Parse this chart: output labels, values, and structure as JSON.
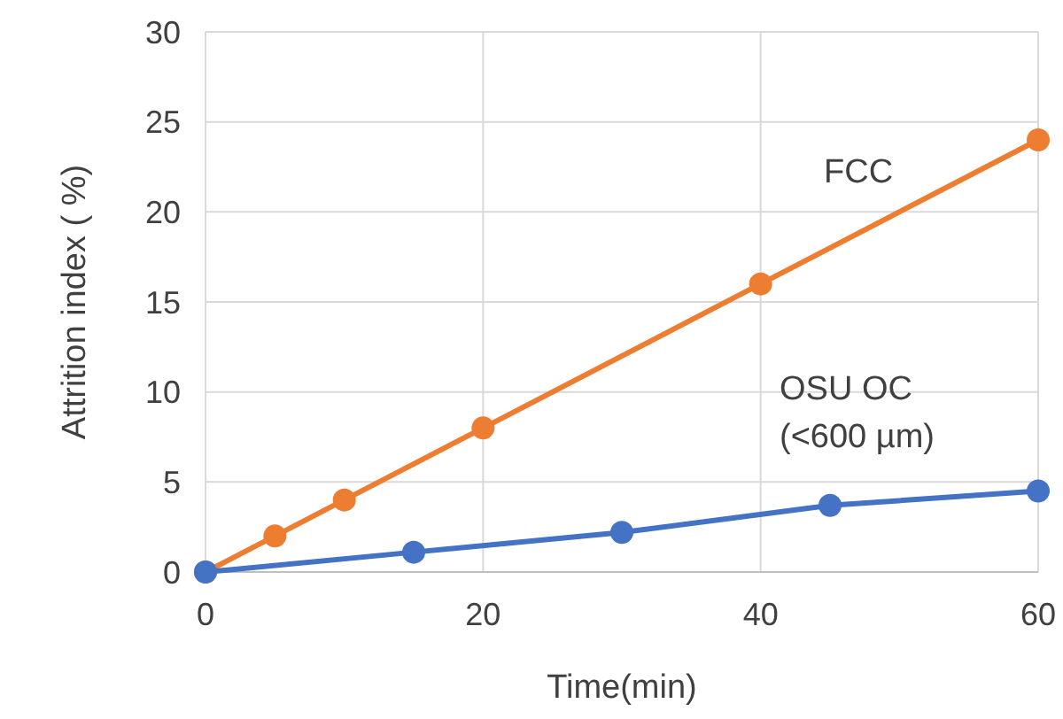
{
  "chart_data": {
    "type": "line",
    "xlabel": "Time(min)",
    "ylabel": "Attrition index ( %)",
    "xlim": [
      0,
      60
    ],
    "xticks": [
      0,
      20,
      40,
      60
    ],
    "ylim": [
      0,
      30
    ],
    "yticks": [
      0,
      5,
      10,
      15,
      20,
      25,
      30
    ],
    "grid": true,
    "marker": "circle",
    "line_style": "solid",
    "series": [
      {
        "name": "FCC",
        "color": "#ed7d31",
        "x": [
          0,
          5,
          10,
          20,
          40,
          60
        ],
        "values": [
          0,
          2,
          4,
          8,
          16,
          24
        ]
      },
      {
        "name": "OSU OC (<600 µm)",
        "color": "#4472c4",
        "x": [
          0,
          15,
          30,
          45,
          60
        ],
        "values": [
          0,
          1.1,
          2.2,
          3.7,
          4.5
        ]
      }
    ]
  }
}
